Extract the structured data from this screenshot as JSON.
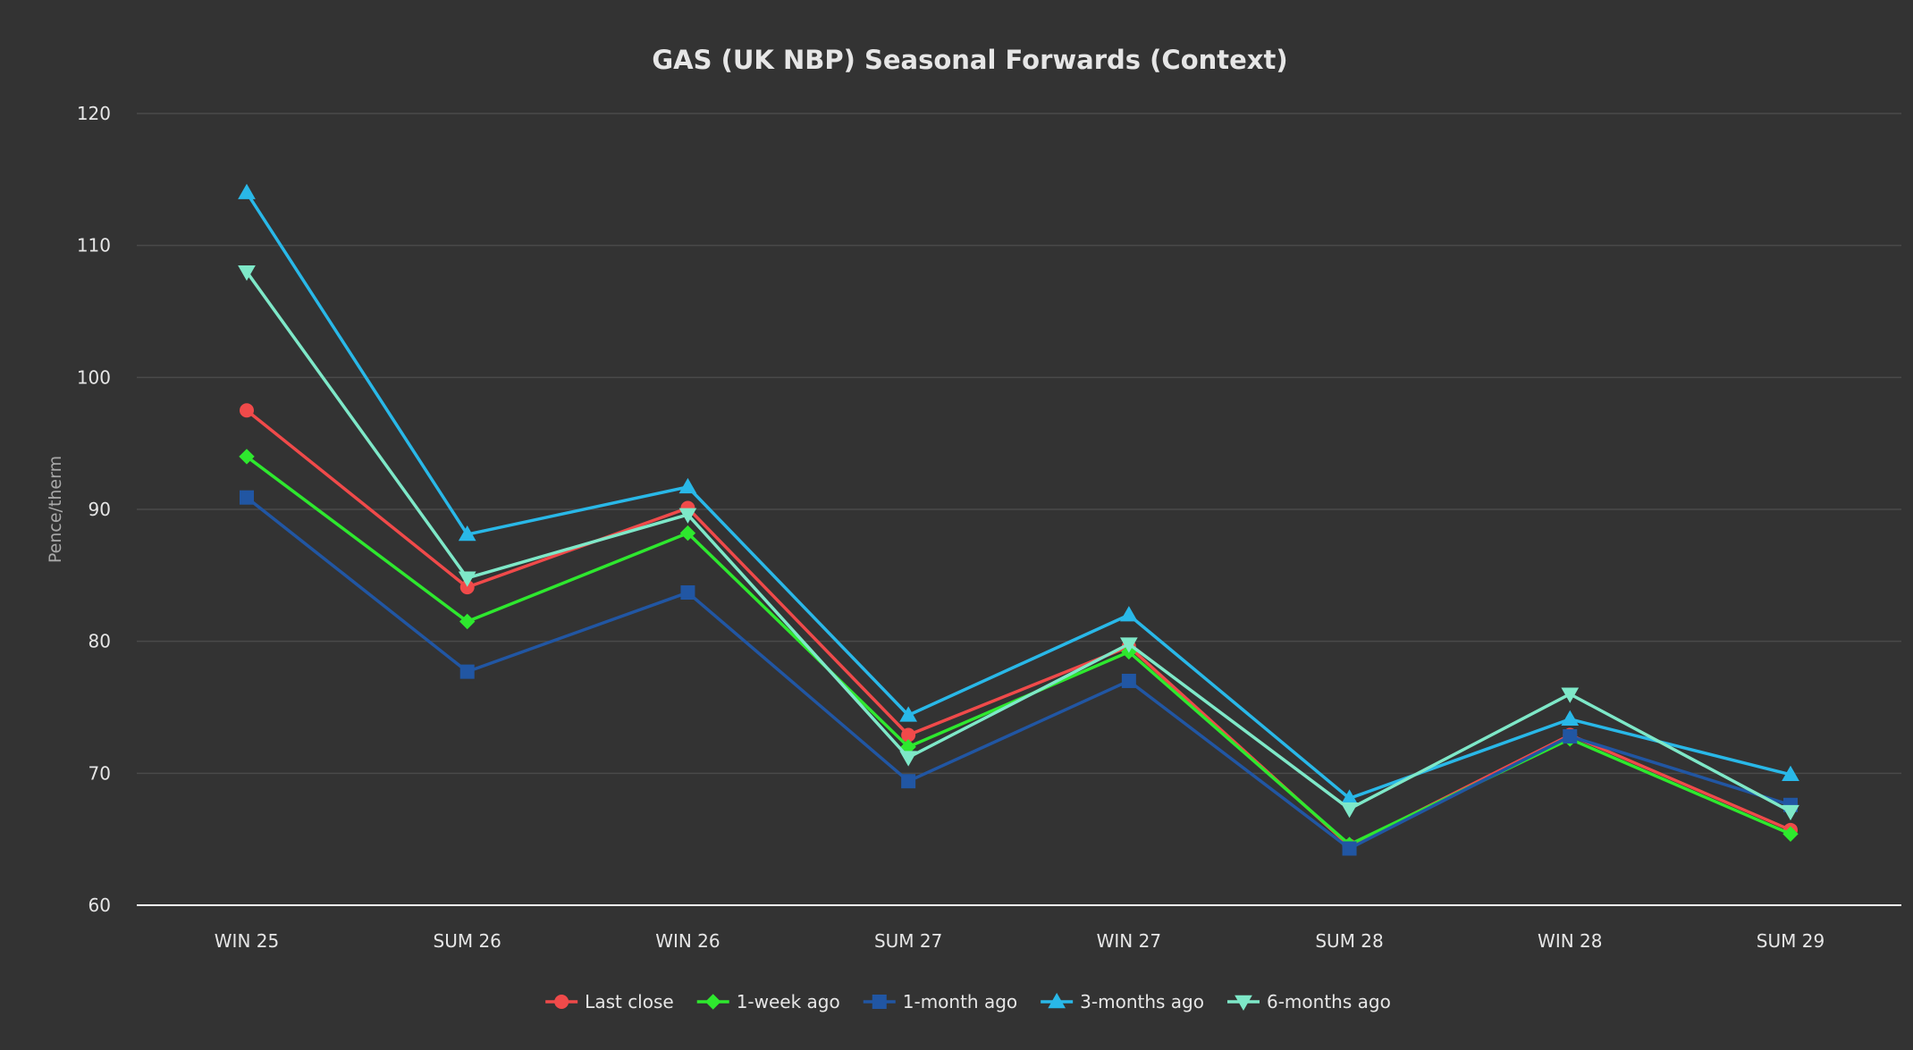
{
  "chart_data": {
    "type": "line",
    "title": "GAS (UK NBP) Seasonal Forwards (Context)",
    "xlabel": "",
    "ylabel": "Pence/therm",
    "ylim": [
      60,
      120
    ],
    "yticks": [
      60,
      70,
      80,
      90,
      100,
      110,
      120
    ],
    "grid": true,
    "legend_position": "bottom-center",
    "categories": [
      "WIN 25",
      "SUM 26",
      "WIN 26",
      "SUM 27",
      "WIN 27",
      "SUM 28",
      "WIN 28",
      "SUM 29"
    ],
    "series": [
      {
        "name": "Last close",
        "color": "#f04a4a",
        "marker": "circle",
        "values": [
          97.5,
          84.1,
          90.1,
          72.9,
          79.6,
          64.5,
          72.9,
          65.7
        ]
      },
      {
        "name": "1-week ago",
        "color": "#2ee82e",
        "marker": "diamond",
        "values": [
          94.0,
          81.5,
          88.2,
          72.0,
          79.2,
          64.6,
          72.6,
          65.4
        ]
      },
      {
        "name": "1-month ago",
        "color": "#2156a3",
        "marker": "square",
        "values": [
          90.9,
          77.7,
          83.7,
          69.4,
          77.0,
          64.3,
          72.8,
          67.6
        ]
      },
      {
        "name": "3-months ago",
        "color": "#29b8e8",
        "marker": "triangle-up",
        "values": [
          114.0,
          88.1,
          91.7,
          74.4,
          82.0,
          68.1,
          74.1,
          69.9
        ]
      },
      {
        "name": "6-months ago",
        "color": "#7ee8c8",
        "marker": "triangle-down",
        "values": [
          108.0,
          84.8,
          89.6,
          71.2,
          79.8,
          67.3,
          76.0,
          67.1
        ]
      }
    ]
  }
}
